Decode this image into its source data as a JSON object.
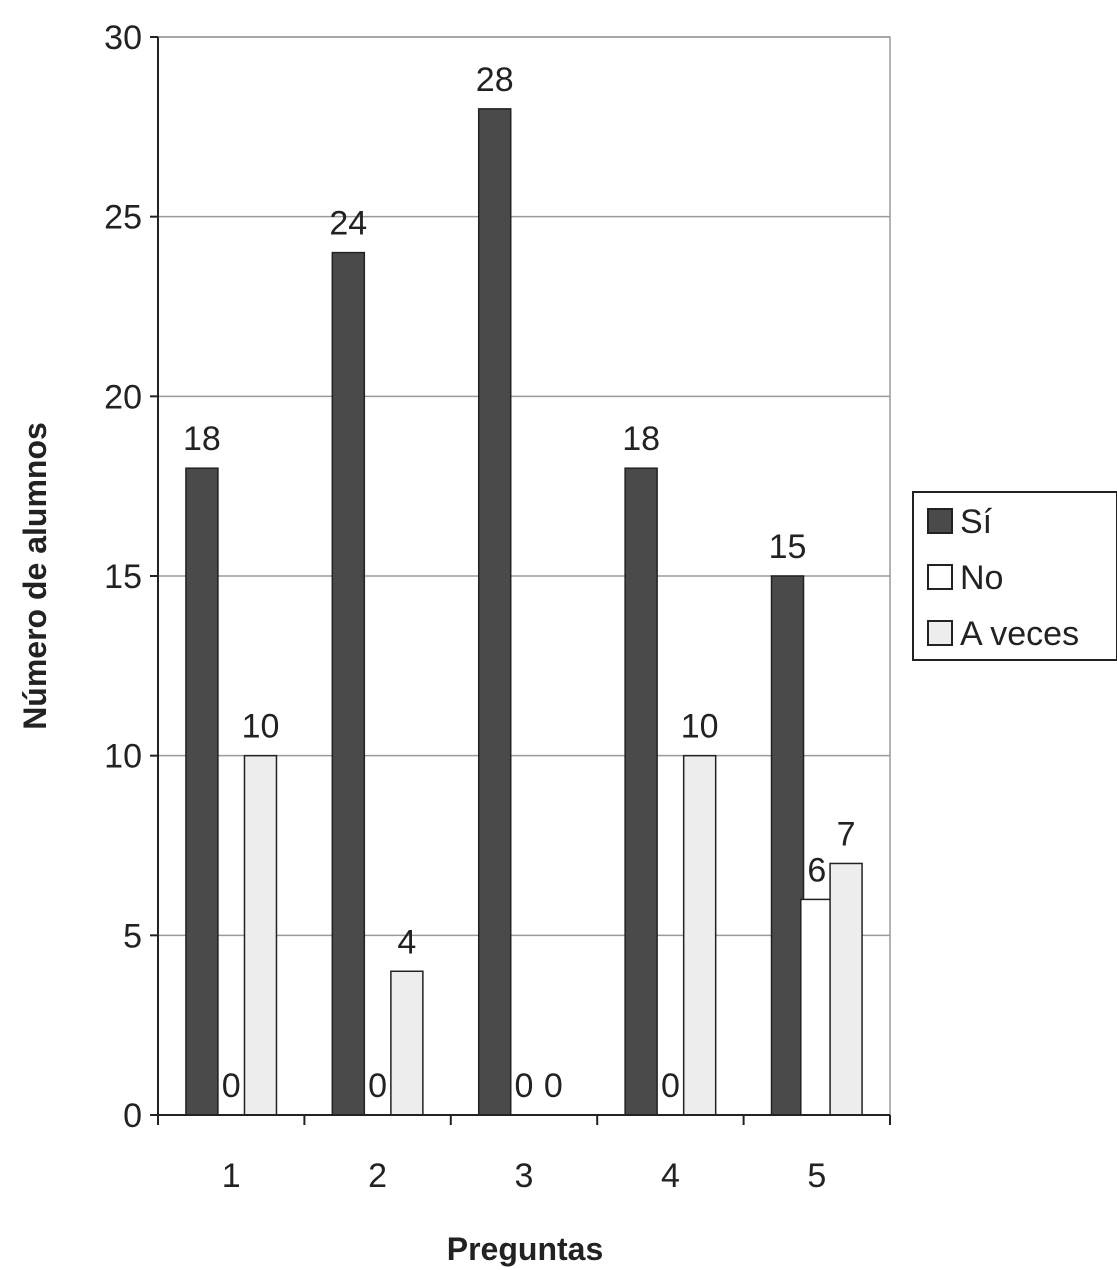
{
  "chart_data": {
    "type": "bar",
    "title": "",
    "xlabel": "Preguntas",
    "ylabel": "Número de alumnos",
    "categories": [
      "1",
      "2",
      "3",
      "4",
      "5"
    ],
    "series": [
      {
        "name": "Sí",
        "values": [
          18,
          24,
          28,
          18,
          15
        ],
        "color": "#4a4a4a"
      },
      {
        "name": "No",
        "values": [
          0,
          0,
          0,
          0,
          6
        ],
        "color": "#ffffff"
      },
      {
        "name": "A veces",
        "values": [
          10,
          4,
          0,
          10,
          7
        ],
        "color": "#ededed"
      }
    ],
    "ylim": [
      0,
      30
    ],
    "yticks": [
      "0",
      "5",
      "10",
      "15",
      "20",
      "25",
      "30"
    ],
    "grid": true,
    "legend_position": "right",
    "data_labels": true
  }
}
